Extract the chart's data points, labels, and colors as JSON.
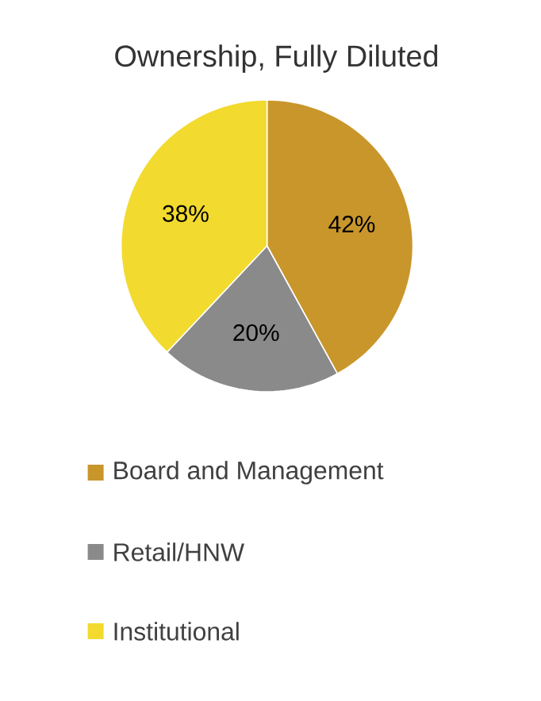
{
  "chart_data": {
    "type": "pie",
    "title": "Ownership, Fully Diluted",
    "categories": [
      "Board and Management",
      "Retail/HNW",
      "Institutional"
    ],
    "values": [
      42,
      20,
      38
    ],
    "value_labels": [
      "42%",
      "20%",
      "38%"
    ],
    "colors": [
      "#c9962c",
      "#8a8a8a",
      "#f2da2e"
    ],
    "legend": "bottom"
  }
}
